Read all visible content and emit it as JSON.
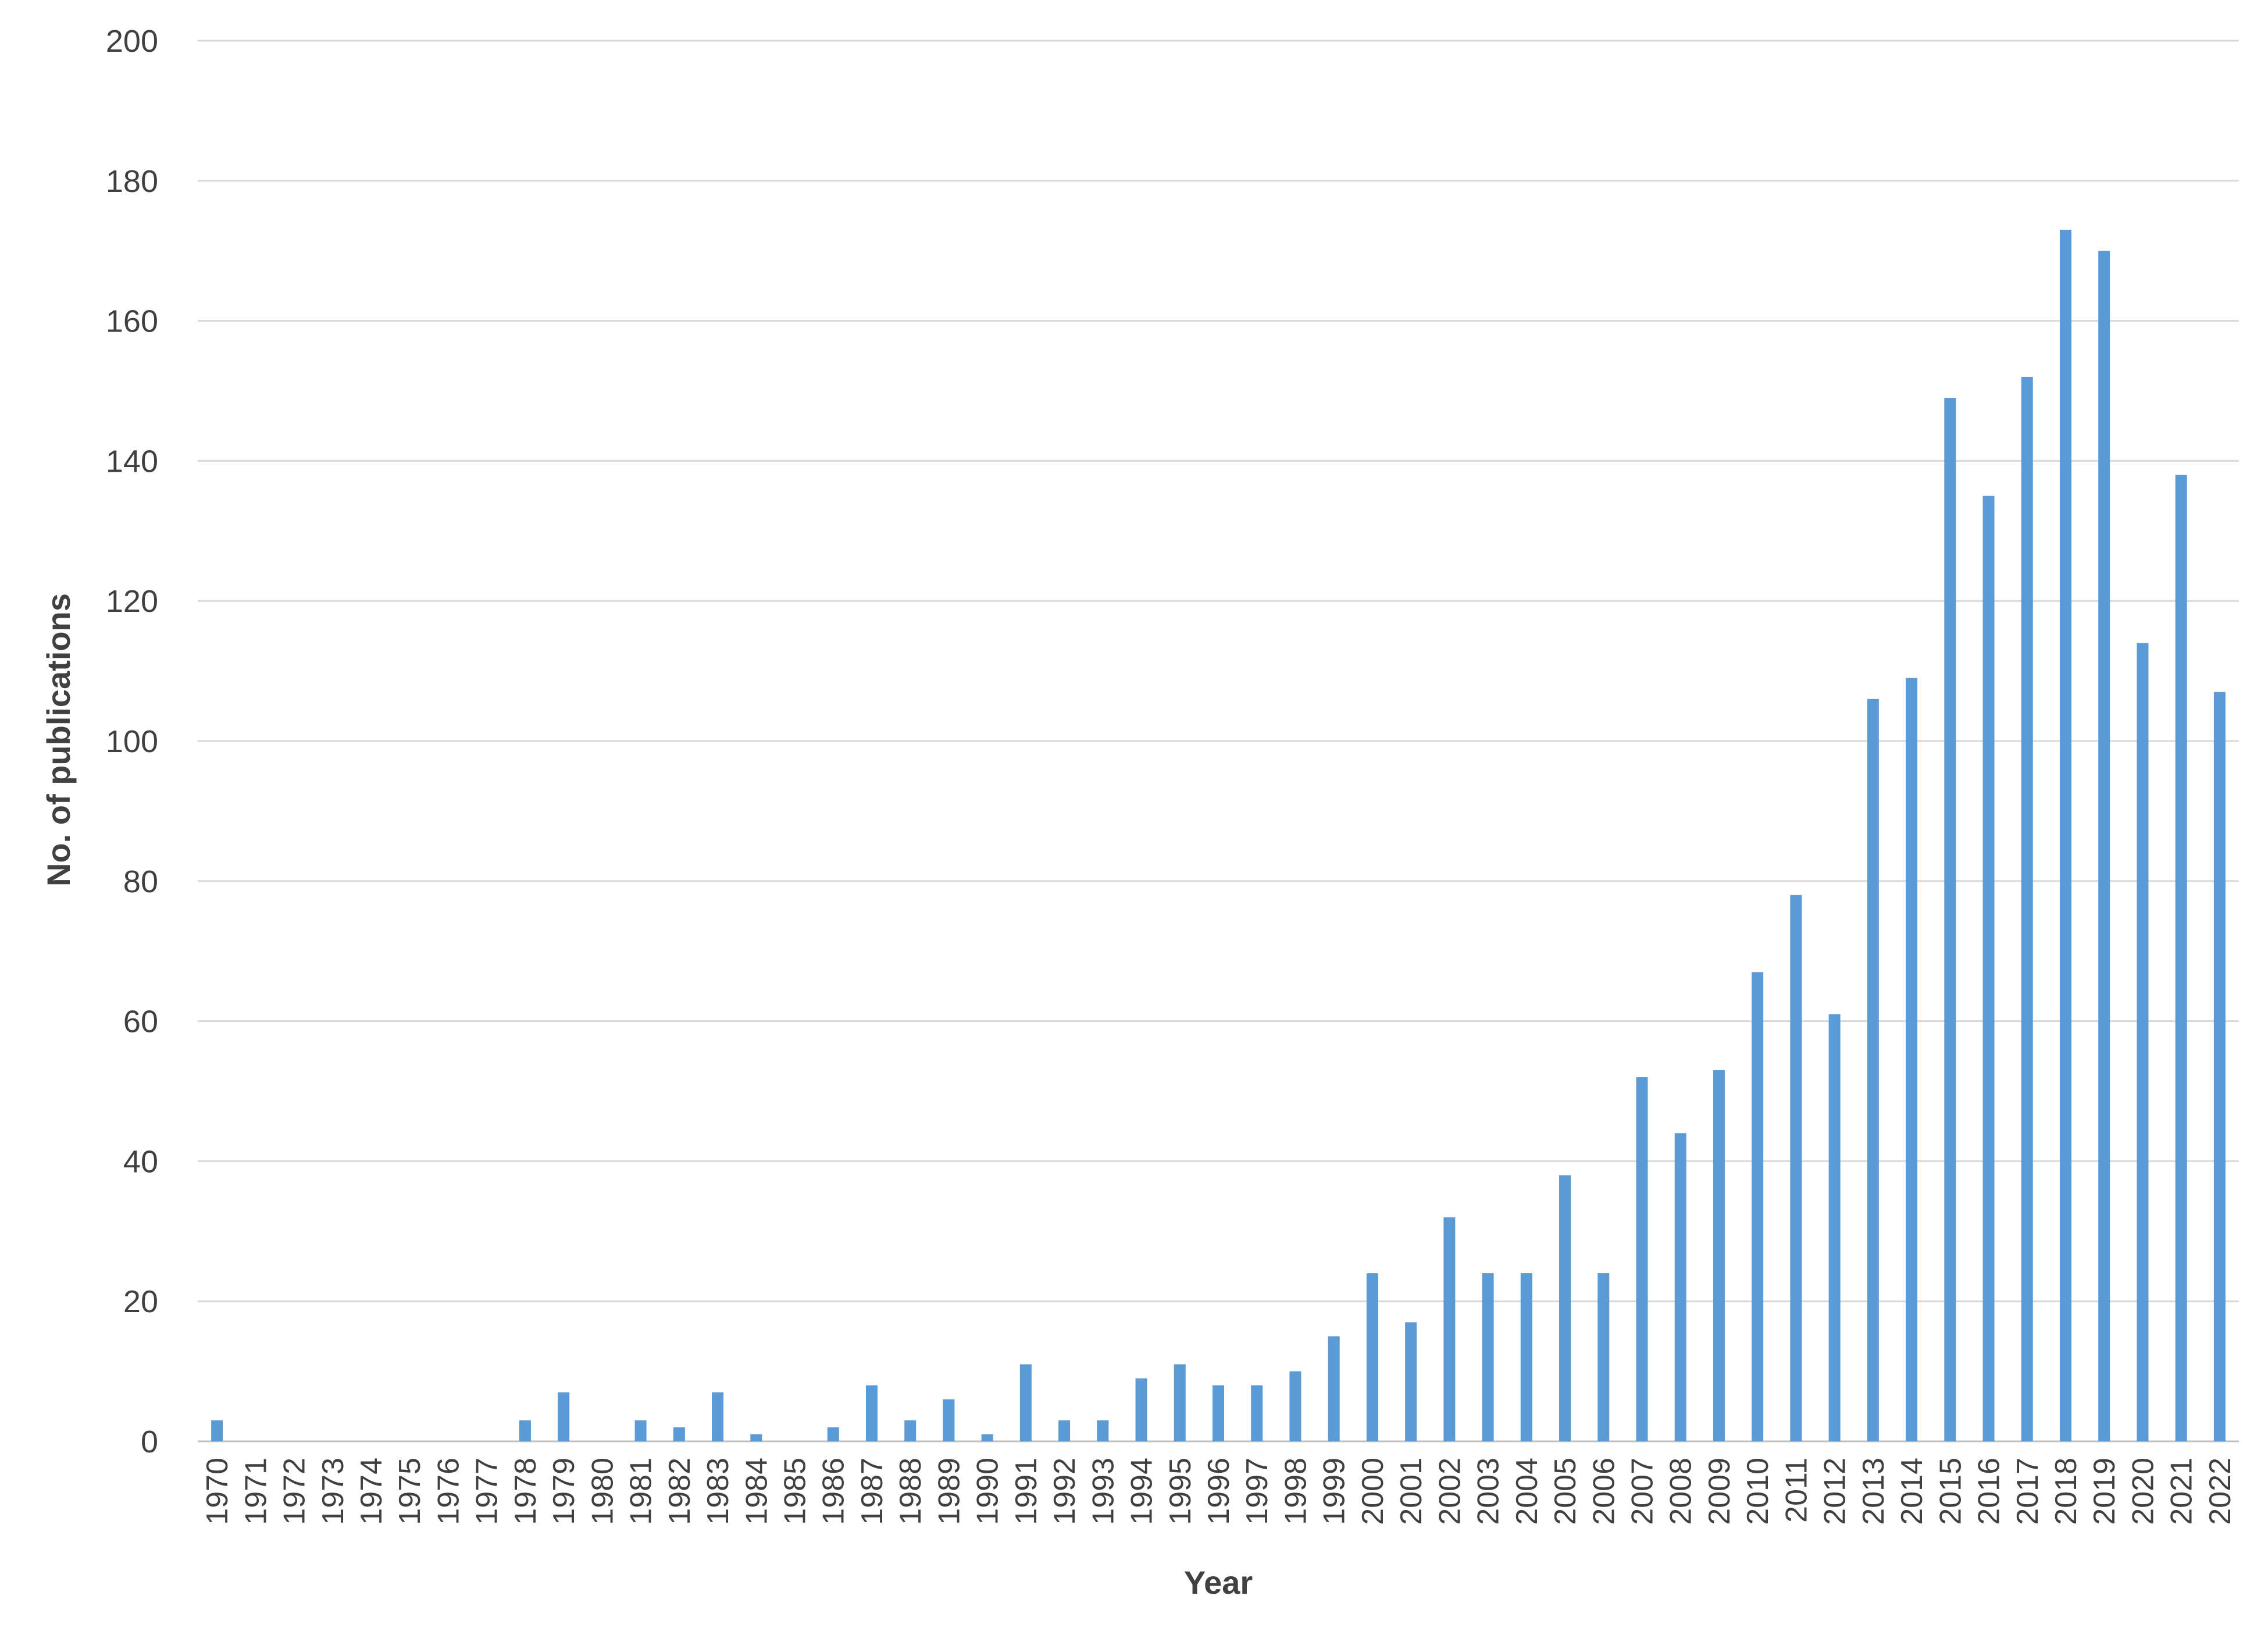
{
  "chart_data": {
    "type": "bar",
    "title": "",
    "xlabel": "Year",
    "ylabel": "No. of publications",
    "ylim": [
      0,
      200
    ],
    "yticks": [
      "0",
      "20",
      "40",
      "60",
      "80",
      "100",
      "120",
      "140",
      "160",
      "180",
      "200"
    ],
    "grid": true,
    "legend": "none",
    "bar_color": "#5b9bd5",
    "categories": [
      "1970",
      "1971",
      "1972",
      "1973",
      "1974",
      "1975",
      "1976",
      "1977",
      "1978",
      "1979",
      "1980",
      "1981",
      "1982",
      "1983",
      "1984",
      "1985",
      "1986",
      "1987",
      "1988",
      "1989",
      "1990",
      "1991",
      "1992",
      "1993",
      "1994",
      "1995",
      "1996",
      "1997",
      "1998",
      "1999",
      "2000",
      "2001",
      "2002",
      "2003",
      "2004",
      "2005",
      "2006",
      "2007",
      "2008",
      "2009",
      "2010",
      "2011",
      "2012",
      "2013",
      "2014",
      "2015",
      "2016",
      "2017",
      "2018",
      "2019",
      "2020",
      "2021",
      "2022"
    ],
    "values": [
      3,
      0,
      0,
      0,
      0,
      0,
      0,
      0,
      3,
      7,
      0,
      3,
      2,
      7,
      1,
      0,
      2,
      8,
      3,
      6,
      1,
      11,
      3,
      3,
      9,
      11,
      8,
      8,
      10,
      15,
      24,
      17,
      32,
      24,
      24,
      38,
      24,
      52,
      44,
      53,
      67,
      78,
      61,
      106,
      109,
      149,
      135,
      152,
      173,
      170,
      114,
      138,
      107
    ]
  }
}
